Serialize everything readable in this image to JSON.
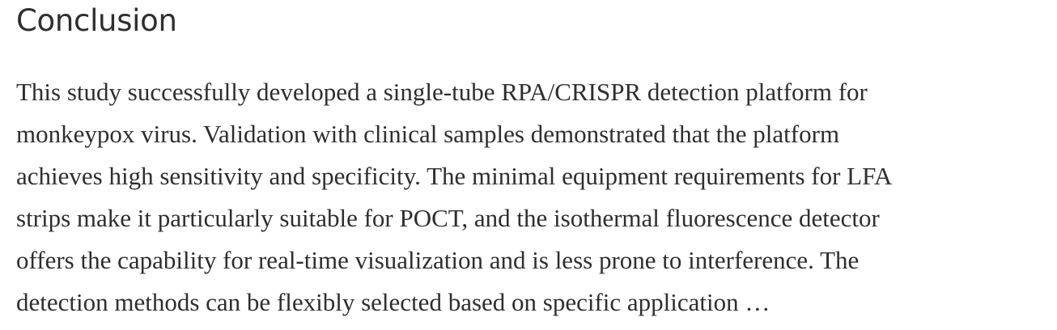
{
  "section": {
    "heading": "Conclusion",
    "lines": [
      "This study successfully developed a single-tube RPA/CRISPR detection platform for",
      "monkeypox virus. Validation with clinical samples demonstrated that the platform",
      "achieves high sensitivity and specificity. The minimal equipment requirements for LFA",
      "strips make it particularly suitable for POCT, and the isothermal fluorescence detector",
      "offers the capability for real-time visualization and is less prone to interference. The",
      "detection methods can be flexibly selected based on specific application …"
    ]
  },
  "colors": {
    "text": "#2e2e2e",
    "background": "#ffffff"
  }
}
